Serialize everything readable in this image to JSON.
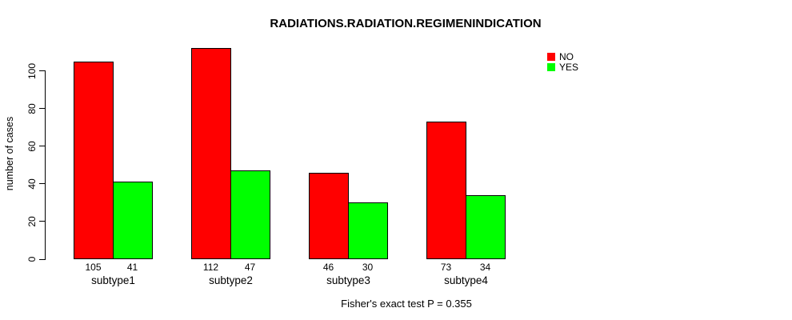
{
  "title": "RADIATIONS.RADIATION.REGIMENINDICATION",
  "y_axis": {
    "label": "number of cases",
    "ticks": [
      0,
      20,
      40,
      60,
      80,
      100
    ]
  },
  "legend": {
    "items": [
      {
        "label": "NO",
        "color": "#FF0000"
      },
      {
        "label": "YES",
        "color": "#00FF00"
      }
    ]
  },
  "annotation": "Fisher's exact test P = 0.355",
  "chart_data": {
    "type": "bar",
    "grouped": true,
    "title": "RADIATIONS.RADIATION.REGIMENINDICATION",
    "categories": [
      "subtype1",
      "subtype2",
      "subtype3",
      "subtype4"
    ],
    "series": [
      {
        "name": "NO",
        "color": "#FF0000",
        "values": [
          105,
          112,
          46,
          73
        ]
      },
      {
        "name": "YES",
        "color": "#00FF00",
        "values": [
          41,
          47,
          30,
          34
        ]
      }
    ],
    "show_value_labels": true,
    "xlabel": "",
    "ylabel": "number of cases",
    "ylim": [
      0,
      100
    ],
    "yticks": [
      0,
      20,
      40,
      60,
      80,
      100
    ],
    "grid": false,
    "legend_position": "top-right",
    "annotation": "Fisher's exact test P = 0.355"
  }
}
